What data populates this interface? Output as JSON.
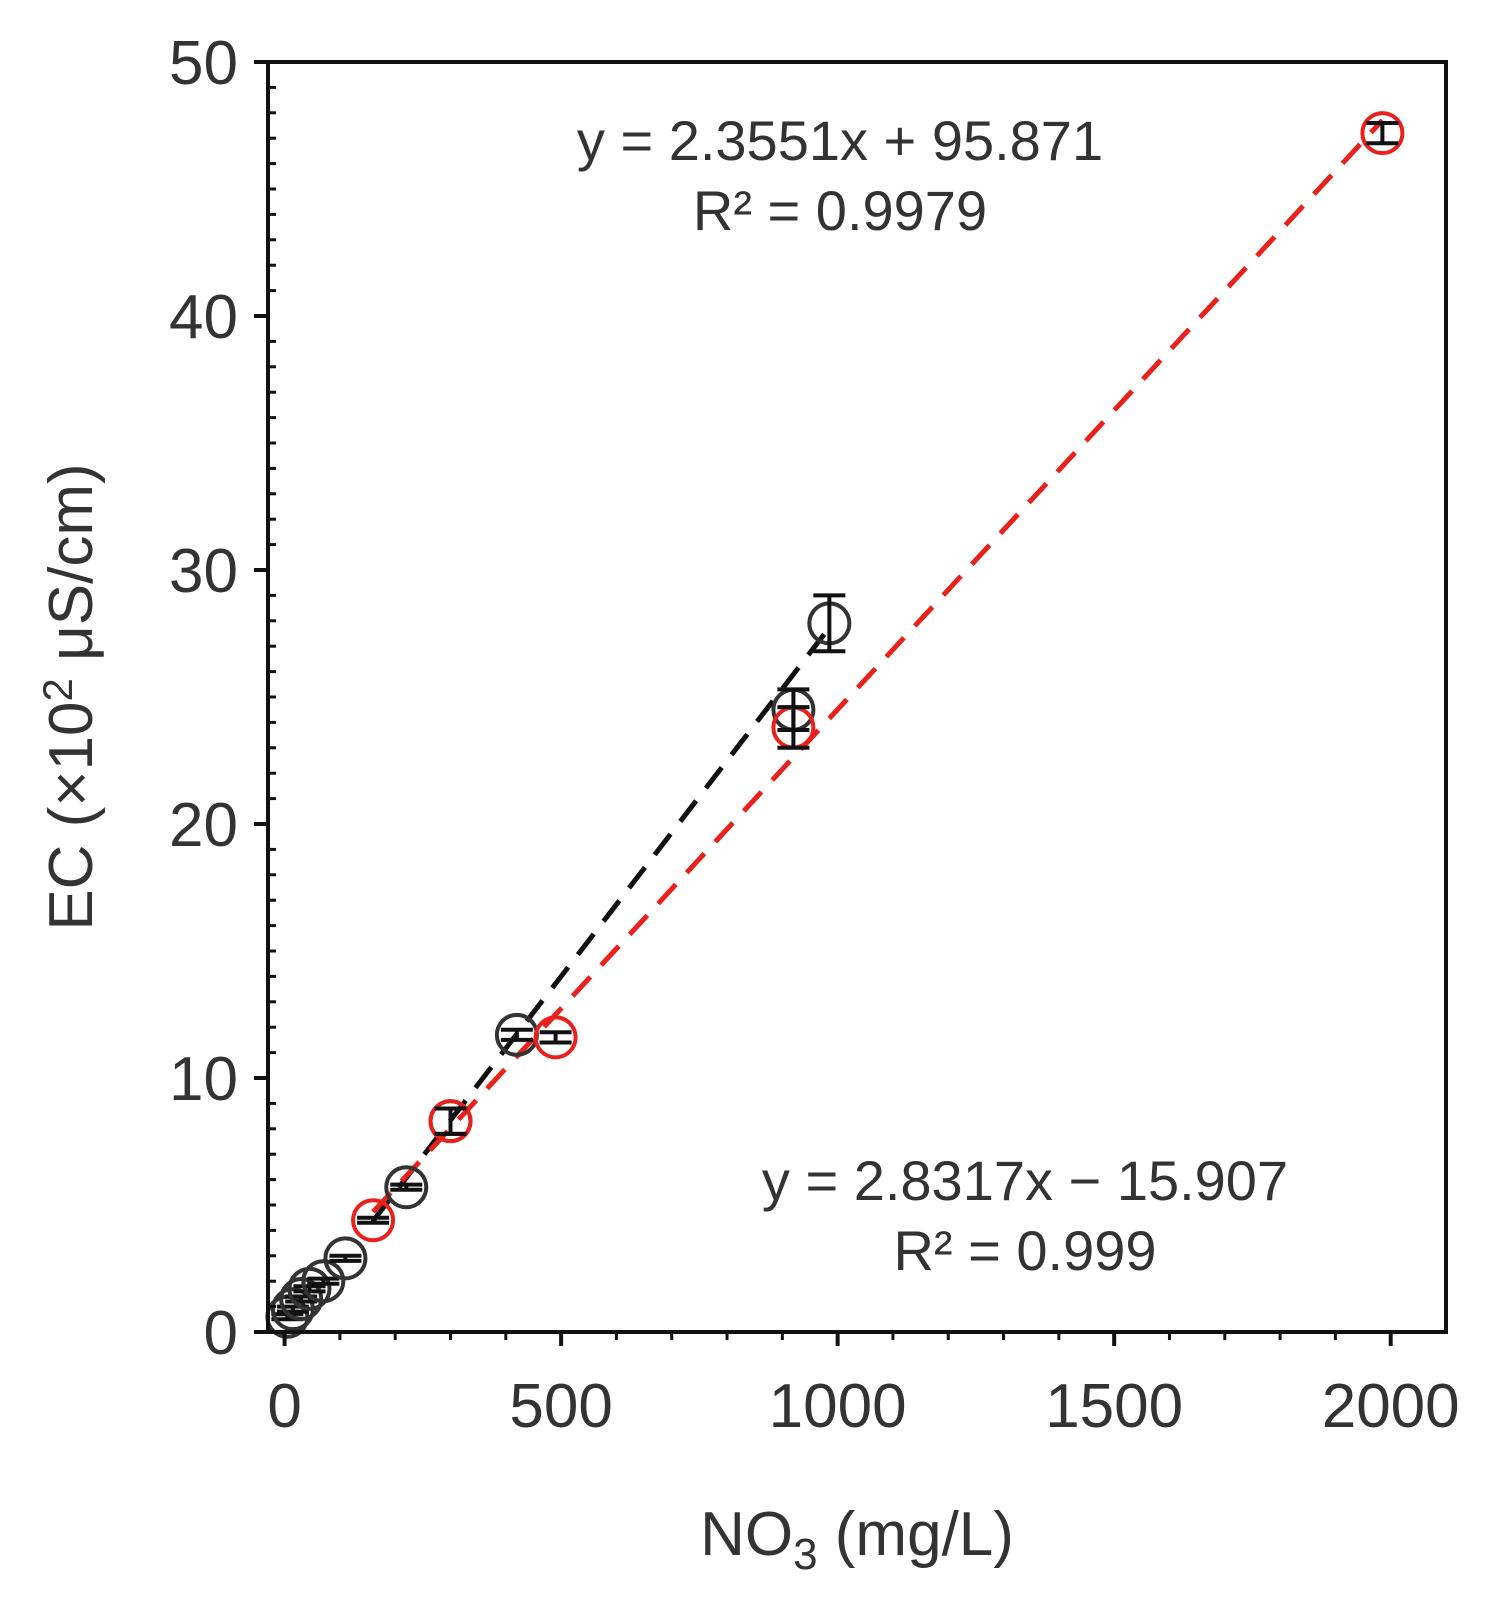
{
  "chart_data": {
    "type": "scatter",
    "xlabel": "NO",
    "xlabel_sub": "3",
    "xlabel_suffix": " (mg/L)",
    "ylabel_prefix": "EC (×10",
    "ylabel_sup": "2",
    "ylabel_suffix": " μS/cm)",
    "xlim": [
      -30,
      2100
    ],
    "ylim": [
      0,
      50
    ],
    "xticks": [
      0,
      500,
      1000,
      1500,
      2000
    ],
    "yticks": [
      0,
      10,
      20,
      30,
      40,
      50
    ],
    "grid": false,
    "legend": "none",
    "series": [
      {
        "color": "#333333",
        "points": [
          {
            "x": 5,
            "y": 0.6,
            "err": 0.1
          },
          {
            "x": 15,
            "y": 0.9,
            "err": 0.1
          },
          {
            "x": 30,
            "y": 1.3,
            "err": 0.1
          },
          {
            "x": 45,
            "y": 1.7,
            "err": 0.1
          },
          {
            "x": 70,
            "y": 2.0,
            "err": 0.1
          },
          {
            "x": 110,
            "y": 2.9,
            "err": 0.1
          },
          {
            "x": 220,
            "y": 5.7,
            "err": 0.1
          },
          {
            "x": 300,
            "y": 8.3,
            "err": 0.5
          },
          {
            "x": 420,
            "y": 11.7,
            "err": 0.2
          },
          {
            "x": 920,
            "y": 24.5,
            "err": 0.8
          },
          {
            "x": 985,
            "y": 27.9,
            "err": 1.1
          }
        ],
        "trendline": {
          "equation": "y = 2.8317x − 15.907",
          "r2": "R² = 0.999",
          "x_range": [
            160,
            985
          ]
        }
      },
      {
        "color": "#e8211c",
        "points": [
          {
            "x": 160,
            "y": 4.4,
            "err": 0.1
          },
          {
            "x": 300,
            "y": 8.3,
            "err": 0.5
          },
          {
            "x": 490,
            "y": 11.6,
            "err": 0.2
          },
          {
            "x": 920,
            "y": 23.8,
            "err": 0.8
          },
          {
            "x": 1985,
            "y": 47.2,
            "err": 0.4
          }
        ],
        "trendline": {
          "equation": "y = 2.3551x + 95.871",
          "r2": "R² = 0.9979",
          "x_range": [
            160,
            1985
          ]
        }
      }
    ]
  }
}
